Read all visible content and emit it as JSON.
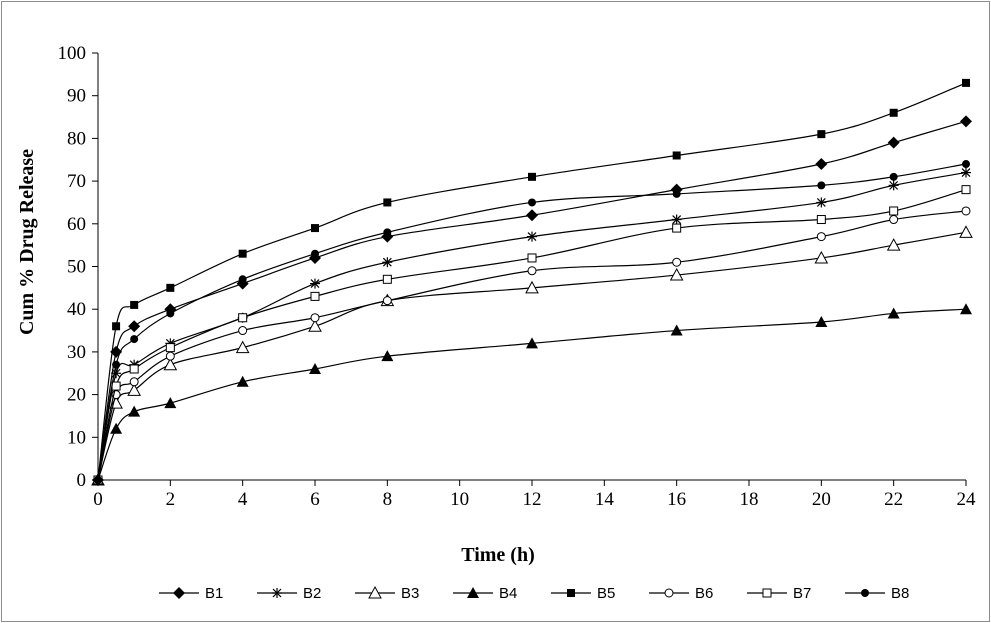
{
  "chart_data": {
    "type": "line",
    "title": "",
    "xlabel": "Time (h)",
    "ylabel": "Cum % Drug Release",
    "xlim": [
      0,
      24
    ],
    "ylim": [
      0,
      100
    ],
    "xticks": [
      0,
      2,
      4,
      6,
      8,
      10,
      12,
      14,
      16,
      18,
      20,
      22,
      24
    ],
    "yticks": [
      0,
      10,
      20,
      30,
      40,
      50,
      60,
      70,
      80,
      90,
      100
    ],
    "grid": false,
    "legend_position": "bottom",
    "x": [
      0,
      0.5,
      1,
      2,
      4,
      6,
      8,
      12,
      16,
      20,
      22,
      24
    ],
    "series": [
      {
        "name": "B1",
        "marker": "diamond",
        "values": [
          0,
          30,
          36,
          40,
          46,
          52,
          57,
          62,
          68,
          74,
          79,
          84
        ]
      },
      {
        "name": "B2",
        "marker": "star",
        "values": [
          0,
          25,
          27,
          32,
          38,
          46,
          51,
          57,
          61,
          65,
          69,
          72
        ]
      },
      {
        "name": "B3",
        "marker": "triangle-open",
        "values": [
          0,
          18,
          21,
          27,
          31,
          36,
          42,
          45,
          48,
          52,
          55,
          58
        ]
      },
      {
        "name": "B4",
        "marker": "triangle-filled",
        "values": [
          0,
          12,
          16,
          18,
          23,
          26,
          29,
          32,
          35,
          37,
          39,
          40
        ]
      },
      {
        "name": "B5",
        "marker": "square-filled",
        "values": [
          0,
          36,
          41,
          45,
          53,
          59,
          65,
          71,
          76,
          81,
          86,
          93
        ]
      },
      {
        "name": "B6",
        "marker": "circle-open",
        "values": [
          0,
          20,
          23,
          29,
          35,
          38,
          42,
          49,
          51,
          57,
          61,
          63
        ]
      },
      {
        "name": "B7",
        "marker": "square-open",
        "values": [
          0,
          22,
          26,
          31,
          38,
          43,
          47,
          52,
          59,
          61,
          63,
          68
        ]
      },
      {
        "name": "B8",
        "marker": "circle-filled",
        "values": [
          0,
          27,
          33,
          39,
          47,
          53,
          58,
          65,
          67,
          69,
          71,
          74
        ]
      }
    ]
  }
}
